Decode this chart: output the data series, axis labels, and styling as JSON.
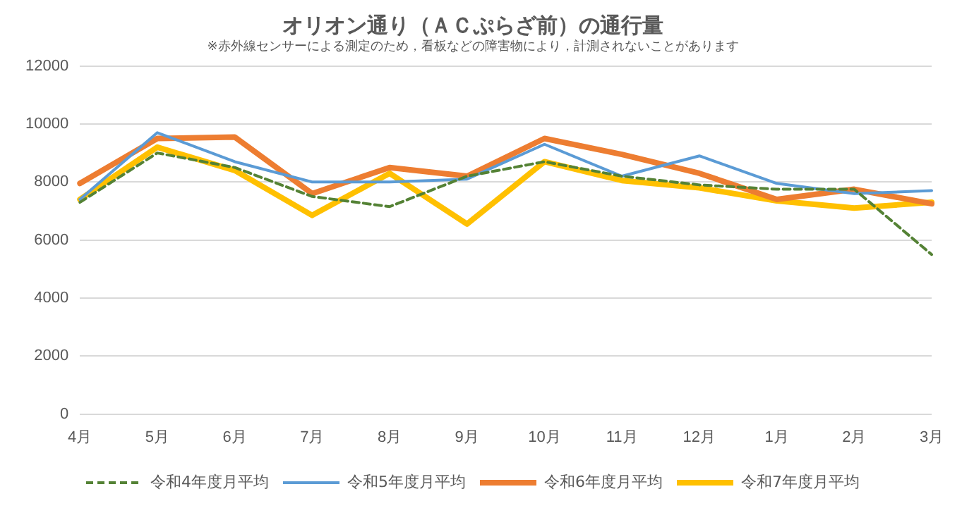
{
  "chart_data": {
    "type": "line",
    "title": "オリオン通り（ＡＣぷらざ前）の通行量",
    "subtitle": "※赤外線センサーによる測定のため，看板などの障害物により，計測されないことがあります",
    "categories": [
      "4月",
      "5月",
      "6月",
      "7月",
      "8月",
      "9月",
      "10月",
      "11月",
      "12月",
      "1月",
      "2月",
      "3月"
    ],
    "ylim": [
      0,
      12000
    ],
    "yticks": [
      0,
      2000,
      4000,
      6000,
      8000,
      10000,
      12000
    ],
    "grid": "y",
    "legend": "bottom",
    "marker": "none",
    "series": [
      {
        "name": "令和4年度月平均",
        "color": "#548235",
        "line_style": "dashed",
        "values": [
          7300,
          9000,
          8500,
          7500,
          7150,
          8200,
          8700,
          8200,
          7900,
          7750,
          7750,
          5500
        ]
      },
      {
        "name": "令和5年度月平均",
        "color": "#5b9bd5",
        "values": [
          7400,
          9700,
          8700,
          8000,
          8000,
          8100,
          9300,
          8200,
          8900,
          7950,
          7600,
          7700
        ]
      },
      {
        "name": "令和6年度月平均",
        "color": "#ed7d31",
        "values": [
          7950,
          9500,
          9550,
          7600,
          8500,
          8200,
          9500,
          8950,
          8300,
          7400,
          7750,
          7250
        ]
      },
      {
        "name": "令和7年度月平均",
        "color": "#ffc000",
        "values": [
          7400,
          9200,
          8400,
          6850,
          8300,
          6550,
          8700,
          8050,
          7800,
          7350,
          7100,
          7300
        ]
      }
    ]
  }
}
